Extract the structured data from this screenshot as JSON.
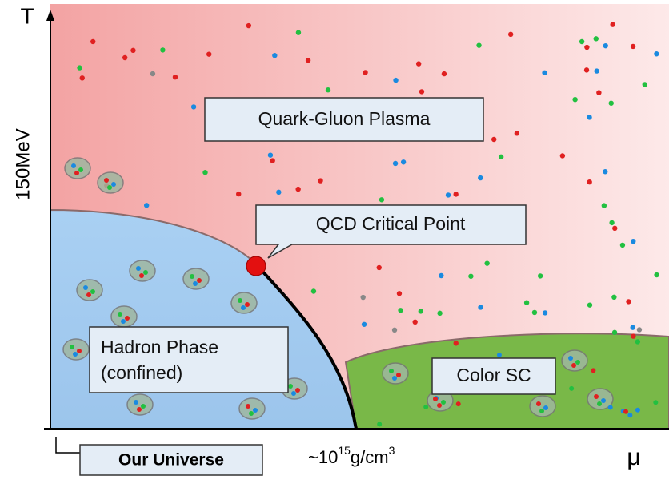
{
  "axes": {
    "y_label": "T",
    "y_marker": "150MeV",
    "x_label": "μ",
    "x_marker": {
      "prefix": "~10",
      "exponent": "15",
      "unit": "g/cm",
      "unit_exponent": "3"
    }
  },
  "regions": {
    "plasma": "Quark-Gluon Plasma",
    "critical_point": "QCD Critical Point",
    "hadron": {
      "line1": "Hadron Phase",
      "line2": "(confined)"
    },
    "color_sc": "Color SC"
  },
  "universe": "Our Universe"
}
